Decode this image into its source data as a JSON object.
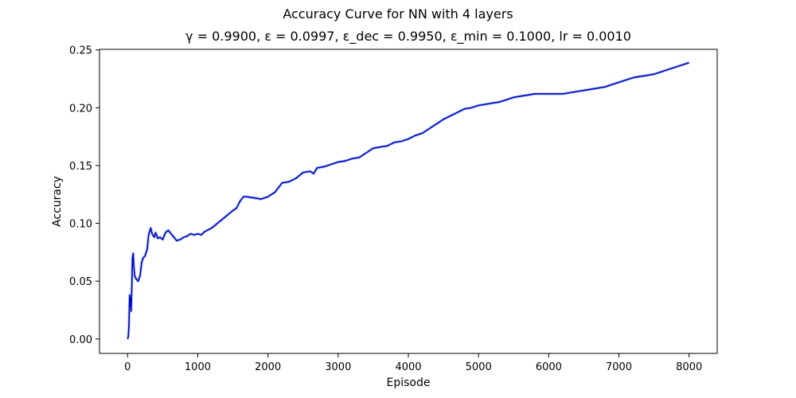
{
  "chart_data": {
    "type": "line",
    "title": "Accuracy Curve for NN with 4 layers",
    "subtitle": "γ = 0.9900, ε = 0.0997, ε_dec = 0.9950, ε_min = 0.1000, lr = 0.0010",
    "xlabel": "Episode",
    "ylabel": "Accuracy",
    "xlim": [
      -400,
      8400
    ],
    "ylim": [
      -0.0125,
      0.2505
    ],
    "xticks": [
      0,
      1000,
      2000,
      3000,
      4000,
      5000,
      6000,
      7000,
      8000
    ],
    "xtick_labels": [
      "0",
      "1000",
      "2000",
      "3000",
      "4000",
      "5000",
      "6000",
      "7000",
      "8000"
    ],
    "yticks": [
      0.0,
      0.05,
      0.1,
      0.15,
      0.2,
      0.25
    ],
    "ytick_labels": [
      "0.00",
      "0.05",
      "0.10",
      "0.15",
      "0.20",
      "0.25"
    ],
    "grid": false,
    "legend": "none",
    "series": [
      {
        "color": "#0000cc",
        "band_color": "#9fbfd9",
        "x": [
          0,
          10,
          20,
          30,
          40,
          50,
          60,
          70,
          80,
          90,
          100,
          120,
          150,
          180,
          200,
          220,
          250,
          280,
          300,
          330,
          350,
          380,
          400,
          430,
          460,
          500,
          540,
          580,
          620,
          660,
          700,
          750,
          800,
          850,
          900,
          950,
          1000,
          1050,
          1100,
          1200,
          1300,
          1400,
          1500,
          1550,
          1600,
          1650,
          1700,
          1800,
          1900,
          2000,
          2100,
          2200,
          2300,
          2400,
          2500,
          2600,
          2650,
          2700,
          2800,
          2900,
          3000,
          3100,
          3200,
          3300,
          3400,
          3500,
          3600,
          3700,
          3800,
          3900,
          4000,
          4100,
          4200,
          4300,
          4400,
          4500,
          4600,
          4700,
          4800,
          4900,
          5000,
          5100,
          5200,
          5300,
          5400,
          5500,
          5600,
          5700,
          5800,
          5900,
          6000,
          6100,
          6200,
          6300,
          6400,
          6500,
          6600,
          6700,
          6800,
          6900,
          7000,
          7100,
          7200,
          7300,
          7400,
          7500,
          7600,
          7700,
          7800,
          7900,
          8000
        ],
        "values": [
          0.0,
          0.002,
          0.012,
          0.038,
          0.034,
          0.024,
          0.045,
          0.07,
          0.074,
          0.062,
          0.055,
          0.052,
          0.05,
          0.055,
          0.066,
          0.07,
          0.072,
          0.078,
          0.09,
          0.096,
          0.091,
          0.088,
          0.092,
          0.087,
          0.088,
          0.086,
          0.092,
          0.094,
          0.091,
          0.088,
          0.085,
          0.086,
          0.088,
          0.089,
          0.091,
          0.09,
          0.091,
          0.09,
          0.093,
          0.096,
          0.101,
          0.106,
          0.111,
          0.113,
          0.119,
          0.123,
          0.123,
          0.122,
          0.121,
          0.123,
          0.127,
          0.135,
          0.136,
          0.139,
          0.144,
          0.145,
          0.143,
          0.148,
          0.149,
          0.151,
          0.153,
          0.154,
          0.156,
          0.157,
          0.161,
          0.165,
          0.166,
          0.167,
          0.17,
          0.171,
          0.173,
          0.176,
          0.178,
          0.182,
          0.186,
          0.19,
          0.193,
          0.196,
          0.199,
          0.2,
          0.202,
          0.203,
          0.204,
          0.205,
          0.207,
          0.209,
          0.21,
          0.211,
          0.212,
          0.212,
          0.212,
          0.212,
          0.212,
          0.213,
          0.214,
          0.215,
          0.216,
          0.217,
          0.218,
          0.22,
          0.222,
          0.224,
          0.226,
          0.227,
          0.228,
          0.229,
          0.231,
          0.233,
          0.235,
          0.237,
          0.239
        ]
      }
    ]
  }
}
